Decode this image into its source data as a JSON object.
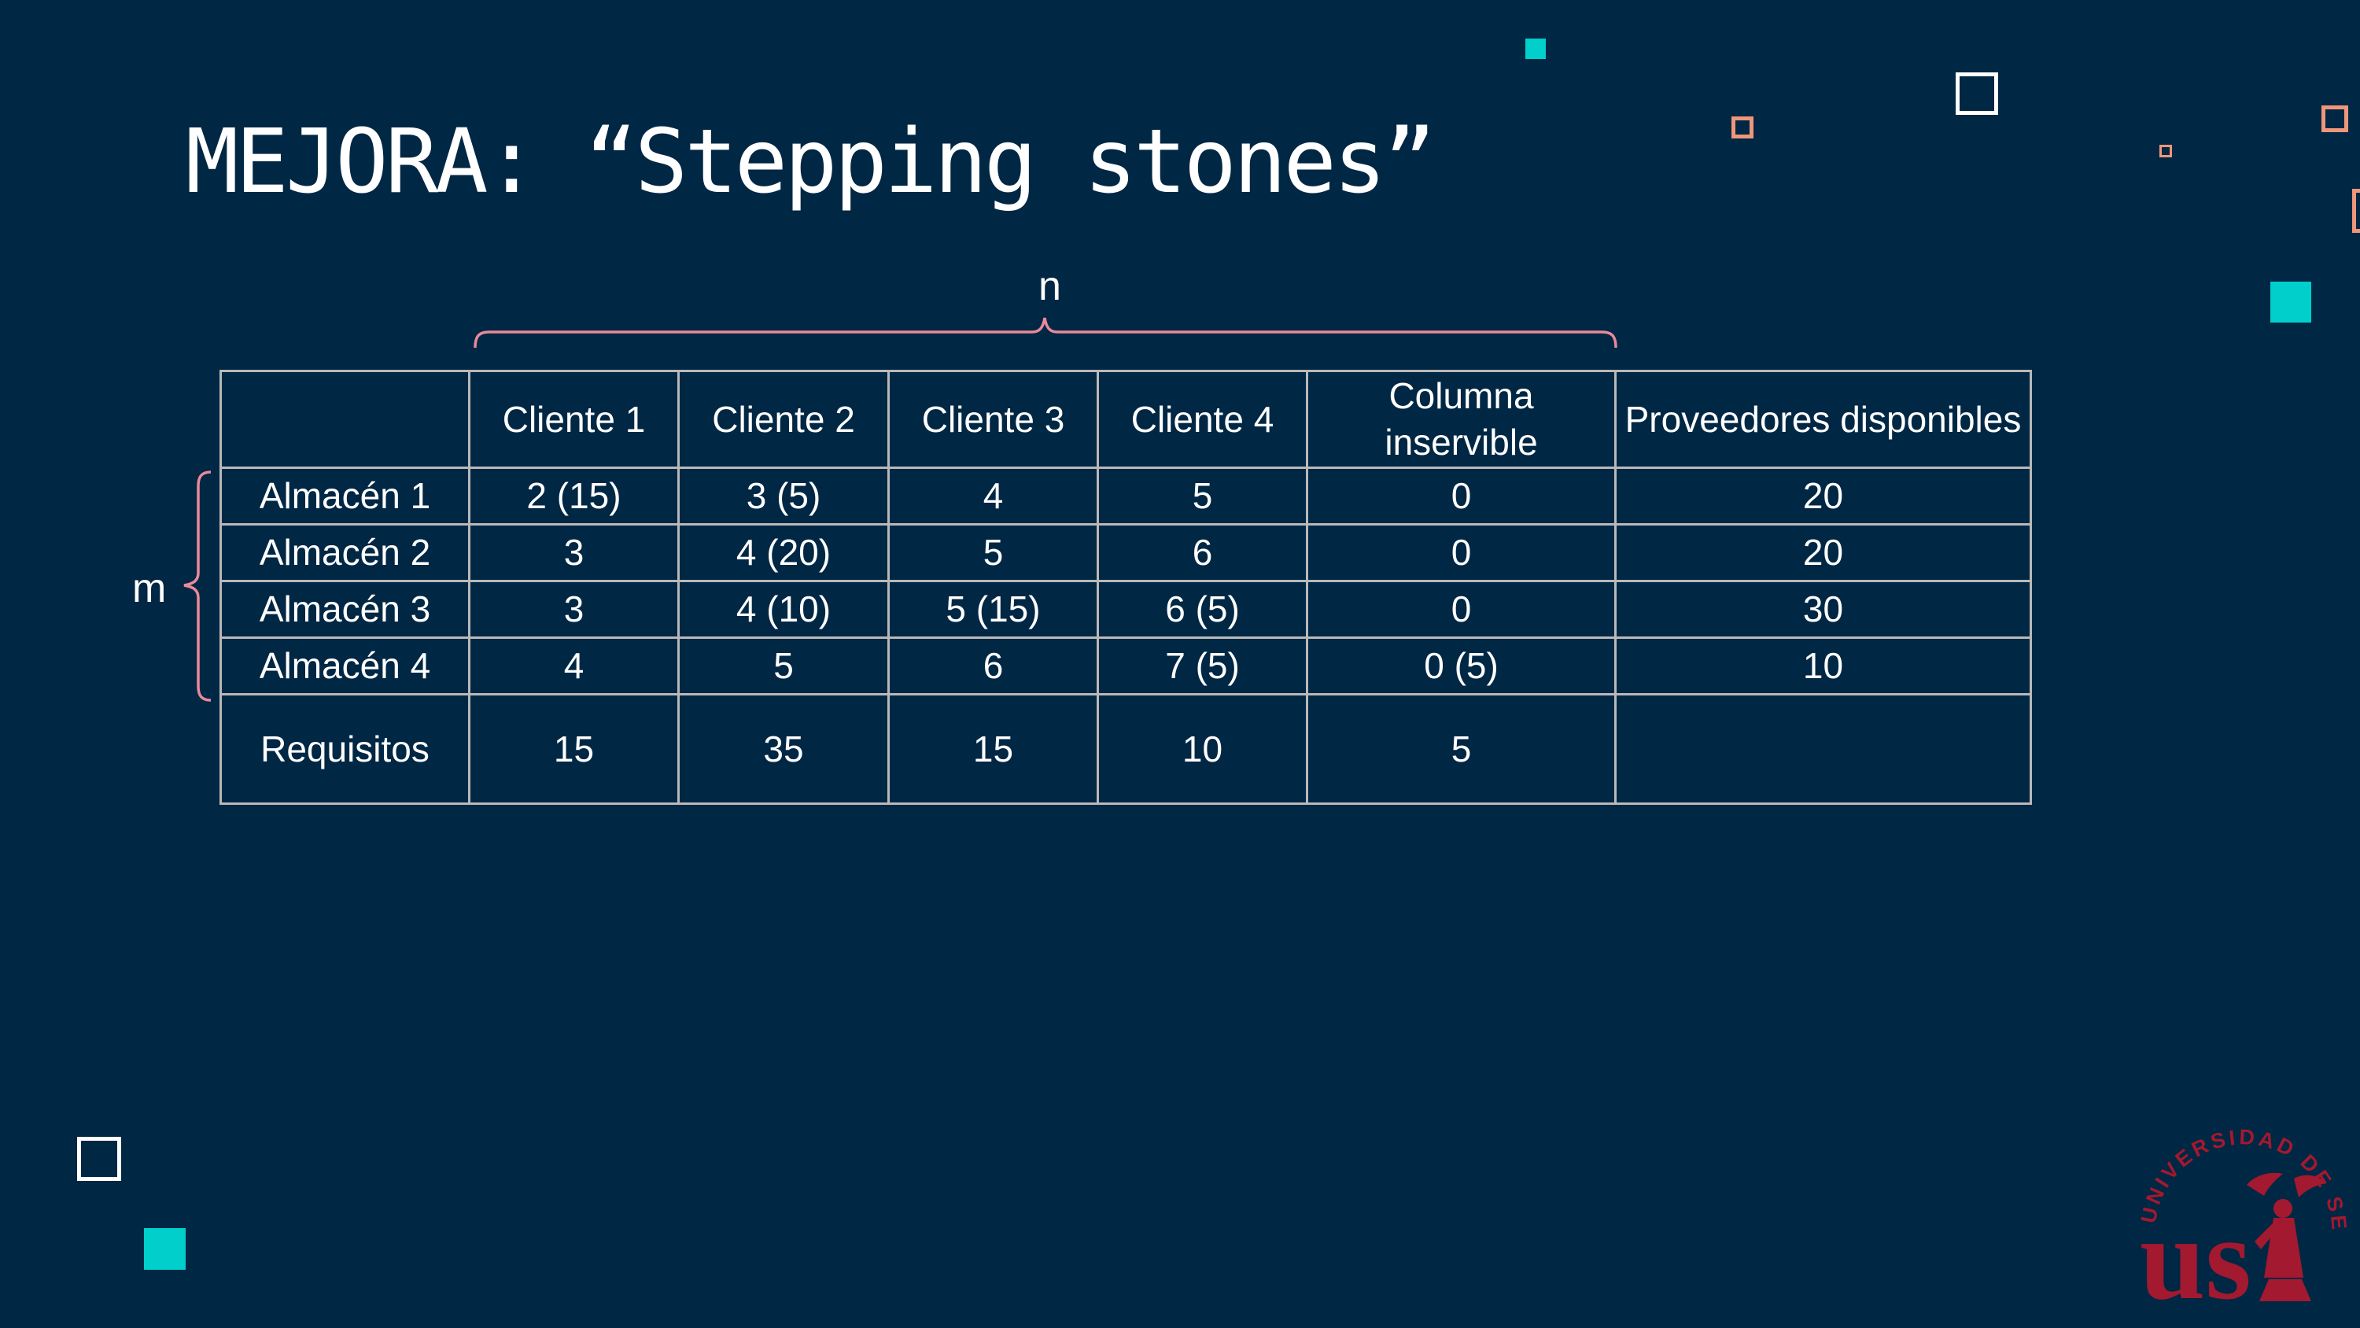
{
  "slide": {
    "title": "MEJORA: “Stepping stones”"
  },
  "braces": {
    "columns_label": "n",
    "rows_label": "m"
  },
  "table": {
    "header": {
      "corner": "",
      "columns": [
        "Cliente 1",
        "Cliente 2",
        "Cliente 3",
        "Cliente 4",
        "Columna inservible",
        "Proveedores disponibles"
      ]
    },
    "rows": [
      {
        "label": "Almacén 1",
        "cells": [
          "2 (15)",
          "3 (5)",
          "4",
          "5",
          "0",
          "20"
        ]
      },
      {
        "label": "Almacén 2",
        "cells": [
          "3",
          "4 (20)",
          "5",
          "6",
          "0",
          "20"
        ]
      },
      {
        "label": "Almacén 3",
        "cells": [
          "3",
          "4 (10)",
          "5 (15)",
          "6 (5)",
          "0",
          "30"
        ]
      },
      {
        "label": "Almacén 4",
        "cells": [
          "4",
          "5",
          "6",
          "7 (5)",
          "0 (5)",
          "10"
        ]
      }
    ],
    "totals": {
      "label": "Requisitos",
      "cells": [
        "15",
        "35",
        "15",
        "10",
        "5",
        ""
      ]
    }
  },
  "logo": {
    "text": "UNIVERSIDAD DE SEVILLA",
    "monogram": "us",
    "color": "#a3192f"
  },
  "colors": {
    "background": "#002744",
    "accent_teal": "#00cfcc",
    "accent_orange": "#f0967a",
    "brace_pink": "#e88a9a",
    "table_border": "#b9b9b9"
  }
}
